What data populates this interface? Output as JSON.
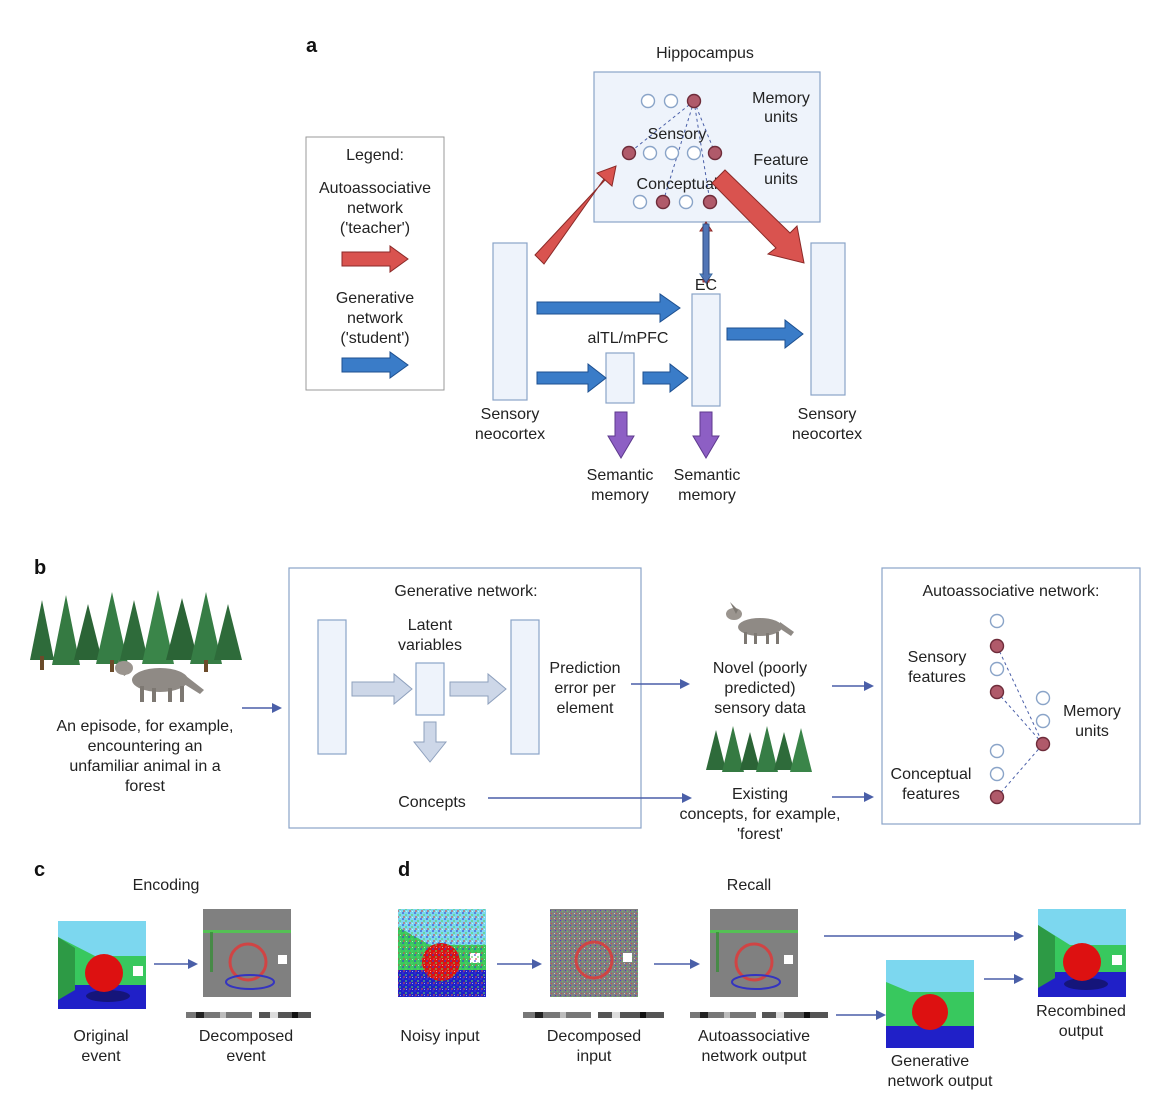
{
  "panels": {
    "a": "a",
    "b": "b",
    "c": "c",
    "d": "d"
  },
  "a": {
    "hippocampus": "Hippocampus",
    "memory_units": [
      "Memory",
      "units"
    ],
    "sensory": "Sensory",
    "feature_units": [
      "Feature",
      "units"
    ],
    "conceptual": "Conceptual",
    "legend_title": "Legend:",
    "legend_auto": [
      "Autoassociative",
      "network",
      "('teacher')"
    ],
    "legend_gen": [
      "Generative",
      "network",
      "('student')"
    ],
    "ec": "EC",
    "altl": "alTL/mPFC",
    "sensory_neocortex_left": [
      "Sensory",
      "neocortex"
    ],
    "sensory_neocortex_right": [
      "Sensory",
      "neocortex"
    ],
    "semantic_memory_1": [
      "Semantic",
      "memory"
    ],
    "semantic_memory_2": [
      "Semantic",
      "memory"
    ]
  },
  "b": {
    "episode": [
      "An episode, for example,",
      "encountering an",
      "unfamiliar animal in a",
      "forest"
    ],
    "gen_title": "Generative network:",
    "latent": [
      "Latent",
      "variables"
    ],
    "pred_error": [
      "Prediction",
      "error per",
      "element"
    ],
    "concepts": "Concepts",
    "novel": [
      "Novel (poorly",
      "predicted)",
      "sensory data"
    ],
    "existing": [
      "Existing",
      "concepts, for example,",
      "'forest'"
    ],
    "auto_title": "Autoassociative network:",
    "sensory_features": [
      "Sensory",
      "features"
    ],
    "conceptual_features": [
      "Conceptual",
      "features"
    ],
    "memory_units": [
      "Memory",
      "units"
    ]
  },
  "c": {
    "title": "Encoding",
    "original": [
      "Original",
      "event"
    ],
    "decomposed": [
      "Decomposed",
      "event"
    ]
  },
  "d": {
    "title": "Recall",
    "noisy": "Noisy input",
    "decomposed": [
      "Decomposed",
      "input"
    ],
    "auto_out": [
      "Autoassociative",
      "network output"
    ],
    "gen_out": [
      "Generative",
      "network output"
    ],
    "recombined": [
      "Recombined",
      "output"
    ]
  },
  "colors": {
    "teacher_arrow": "#d9534f",
    "student_arrow": "#3a7cc8",
    "semantic_arrow": "#8d5fc4",
    "memory_unit_active": "#b05a6a",
    "box_fill": "#eef3fb"
  },
  "icons": [
    "wolf-icon",
    "forest-icon",
    "scene-thumbnail"
  ]
}
